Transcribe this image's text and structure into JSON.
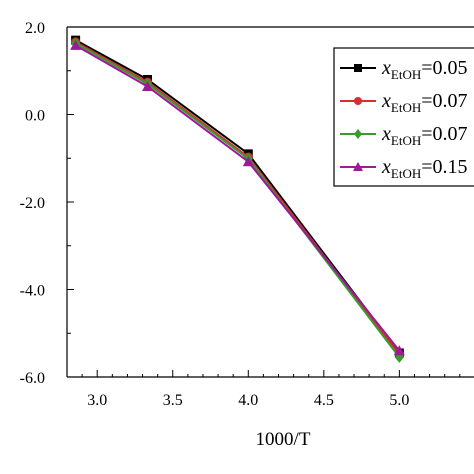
{
  "chart_data": {
    "type": "line",
    "title": "",
    "xlabel": "1000/T",
    "ylabel": "",
    "xlim": [
      2.8,
      5.6
    ],
    "ylim": [
      -6.0,
      2.0
    ],
    "grid": false,
    "legend_position": "top-right",
    "xticks": [
      "3.0",
      "3.5",
      "4.0",
      "4.5",
      "5.0"
    ],
    "yticks": [
      "2.0",
      "0.0",
      "-2.0",
      "-4.0",
      "-6.0"
    ],
    "series": [
      {
        "name": "x_EtOH=0.05",
        "legend_var": "x",
        "legend_sub": "EtOH",
        "legend_rest": "=0.05",
        "color": "#000000",
        "marker": "square",
        "x": [
          2.857,
          3.333,
          4.0,
          5.0
        ],
        "y": [
          1.7,
          0.8,
          -0.9,
          -5.45
        ]
      },
      {
        "name": "x_EtOH=0.07",
        "legend_var": "x",
        "legend_sub": "EtOH",
        "legend_rest": "=0.07",
        "color": "#d62f2f",
        "marker": "circle",
        "x": [
          2.857,
          3.333,
          4.0,
          5.0
        ],
        "y": [
          1.66,
          0.74,
          -0.97,
          -5.48
        ]
      },
      {
        "name": "x_EtOH=0.07",
        "legend_var": "x",
        "legend_sub": "EtOH",
        "legend_rest": "=0.07",
        "color": "#3a9a2c",
        "marker": "diamond",
        "x": [
          2.857,
          3.333,
          4.0,
          5.0
        ],
        "y": [
          1.63,
          0.7,
          -1.01,
          -5.55
        ]
      },
      {
        "name": "x_EtOH=0.15",
        "legend_var": "x",
        "legend_sub": "EtOH",
        "legend_rest": "=0.15",
        "color": "#9a1a9a",
        "marker": "triangle",
        "x": [
          2.857,
          3.333,
          4.0,
          5.0
        ],
        "y": [
          1.58,
          0.64,
          -1.08,
          -5.4
        ]
      }
    ]
  }
}
